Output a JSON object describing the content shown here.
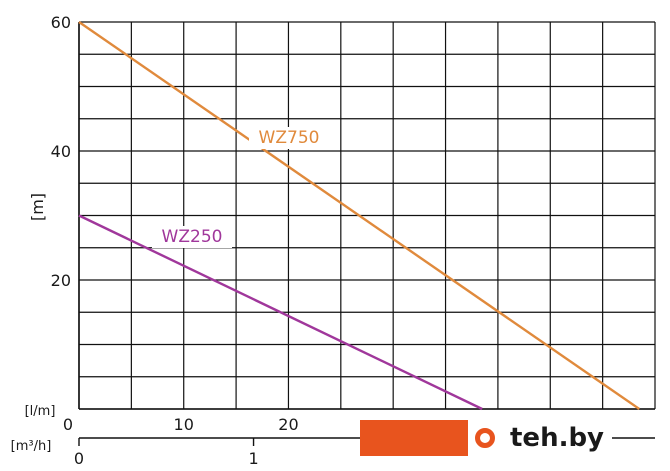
{
  "chart_data": {
    "type": "line",
    "ylabel": "[m]",
    "ylim": [
      0,
      60
    ],
    "y_ticks": [
      20,
      40,
      60
    ],
    "x_axes": [
      {
        "unit_label": "[l/m]",
        "range": [
          0,
          55
        ],
        "ticks": [
          0,
          10,
          20,
          30,
          40,
          50
        ],
        "tick_labels": [
          "0",
          "10",
          "20",
          "",
          "",
          ""
        ]
      },
      {
        "unit_label": "[m³/h]",
        "range": [
          0,
          3.3
        ],
        "ticks": [
          0,
          1,
          2,
          3
        ],
        "tick_labels": [
          "0",
          "1",
          "",
          ""
        ]
      }
    ],
    "grid": true,
    "series": [
      {
        "name": "WZ750",
        "color": "#e08a3c",
        "x": [
          0,
          53.5
        ],
        "y": [
          60,
          0
        ]
      },
      {
        "name": "WZ250",
        "color": "#a0379b",
        "x": [
          0,
          38.5
        ],
        "y": [
          30,
          0
        ]
      }
    ]
  },
  "watermark": {
    "text": "teh.by"
  }
}
